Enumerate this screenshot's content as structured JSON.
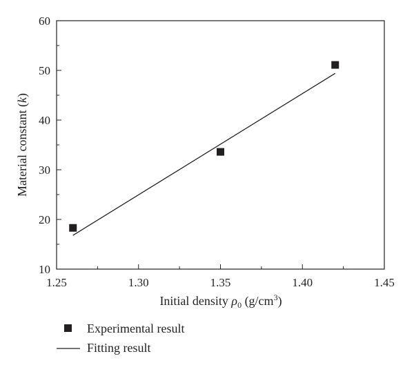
{
  "chart_data": {
    "type": "scatter",
    "xlabel_main": "Initial density ",
    "xlabel_symbol": "ρ",
    "xlabel_subscript": "0",
    "xlabel_unit": " (g/cm",
    "xlabel_unit_sup": "3",
    "xlabel_unit_close": ")",
    "ylabel_main": "Material constant (",
    "ylabel_symbol": "k",
    "ylabel_close": ")",
    "xlim": [
      1.25,
      1.45
    ],
    "ylim": [
      10,
      60
    ],
    "x_ticks": [
      "1.25",
      "1.30",
      "1.35",
      "1.40",
      "1.45"
    ],
    "y_ticks": [
      "10",
      "20",
      "30",
      "40",
      "50",
      "60"
    ],
    "grid": false,
    "legend_position": "bottom-left, below plot",
    "series": [
      {
        "name": "Experimental result",
        "kind": "scatter",
        "marker": "square",
        "color": "#231f20",
        "points": [
          {
            "x": 1.26,
            "y": 18.3
          },
          {
            "x": 1.35,
            "y": 33.6
          },
          {
            "x": 1.42,
            "y": 51.1
          }
        ]
      },
      {
        "name": "Fitting result",
        "kind": "line",
        "color": "#231f20",
        "points": [
          {
            "x": 1.26,
            "y": 16.8
          },
          {
            "x": 1.42,
            "y": 49.4
          }
        ]
      }
    ]
  }
}
